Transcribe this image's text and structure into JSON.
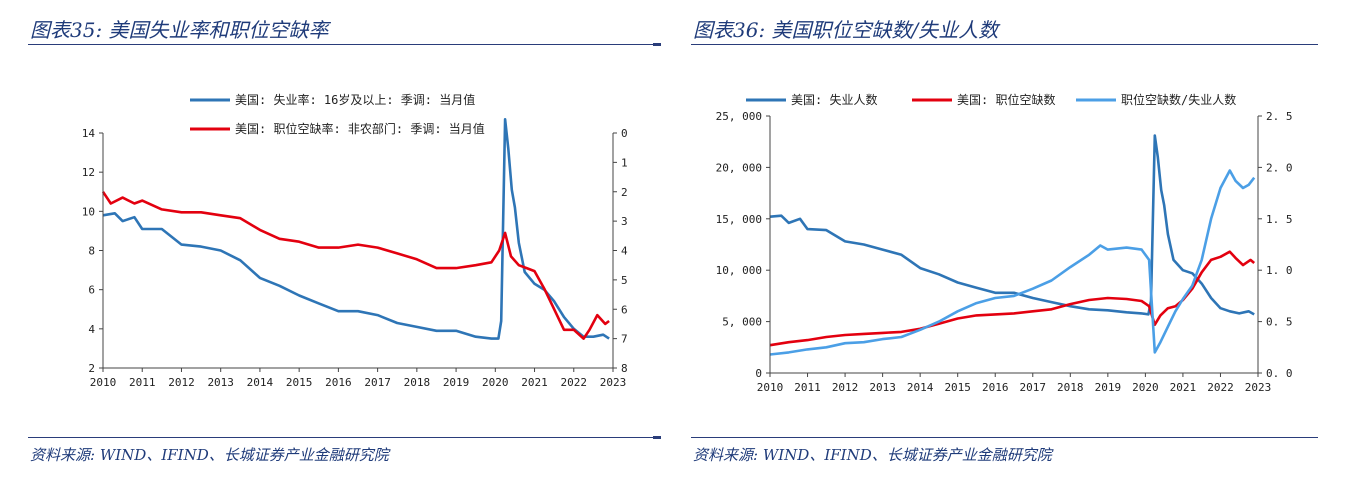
{
  "left": {
    "title": "图表35:  美国失业率和职位空缺率",
    "source": "资料来源:  WIND、IFIND、长城证券产业金融研究院"
  },
  "right": {
    "title": "图表36:  美国职位空缺数/失业人数",
    "source": "资料来源:  WIND、IFIND、长城证券产业金融研究院"
  },
  "colors": {
    "dark_blue": "#2e75b6",
    "red": "#e3000f",
    "light_blue": "#4b9fe6",
    "title_blue": "#1f3b7a"
  },
  "chart_data": [
    {
      "type": "line",
      "x_ticks": [
        "2010",
        "2011",
        "2012",
        "2013",
        "2014",
        "2015",
        "2016",
        "2017",
        "2018",
        "2019",
        "2020",
        "2021",
        "2022",
        "2023"
      ],
      "xlim": [
        2010,
        2023
      ],
      "y_left": {
        "ylim": [
          2,
          14
        ],
        "ticks": [
          "2",
          "4",
          "6",
          "8",
          "10",
          "12",
          "14"
        ],
        "inverted": false
      },
      "y_right": {
        "ylim": [
          0,
          8
        ],
        "ticks": [
          "0",
          "1",
          "2",
          "3",
          "4",
          "5",
          "6",
          "7",
          "8"
        ],
        "inverted": true
      },
      "legend_position": "top",
      "series": [
        {
          "name": "美国: 失业率: 16岁及以上: 季调: 当月值",
          "axis": "left",
          "color": "#2e75b6",
          "points": [
            [
              2010.0,
              9.8
            ],
            [
              2010.3,
              9.9
            ],
            [
              2010.5,
              9.5
            ],
            [
              2010.8,
              9.7
            ],
            [
              2011.0,
              9.1
            ],
            [
              2011.5,
              9.1
            ],
            [
              2012.0,
              8.3
            ],
            [
              2012.5,
              8.2
            ],
            [
              2013.0,
              8.0
            ],
            [
              2013.5,
              7.5
            ],
            [
              2014.0,
              6.6
            ],
            [
              2014.5,
              6.2
            ],
            [
              2015.0,
              5.7
            ],
            [
              2015.5,
              5.3
            ],
            [
              2016.0,
              4.9
            ],
            [
              2016.5,
              4.9
            ],
            [
              2017.0,
              4.7
            ],
            [
              2017.5,
              4.3
            ],
            [
              2018.0,
              4.1
            ],
            [
              2018.5,
              3.9
            ],
            [
              2019.0,
              3.9
            ],
            [
              2019.5,
              3.6
            ],
            [
              2019.9,
              3.5
            ],
            [
              2020.08,
              3.5
            ],
            [
              2020.15,
              4.4
            ],
            [
              2020.25,
              14.7
            ],
            [
              2020.33,
              13.2
            ],
            [
              2020.42,
              11.1
            ],
            [
              2020.5,
              10.2
            ],
            [
              2020.6,
              8.4
            ],
            [
              2020.75,
              6.9
            ],
            [
              2021.0,
              6.3
            ],
            [
              2021.25,
              6.0
            ],
            [
              2021.5,
              5.4
            ],
            [
              2021.75,
              4.6
            ],
            [
              2022.0,
              4.0
            ],
            [
              2022.25,
              3.6
            ],
            [
              2022.5,
              3.6
            ],
            [
              2022.75,
              3.7
            ],
            [
              2022.9,
              3.5
            ]
          ]
        },
        {
          "name": "美国: 职位空缺率: 非农部门: 季调: 当月值",
          "axis": "right",
          "color": "#e3000f",
          "points": [
            [
              2010.0,
              2.0
            ],
            [
              2010.2,
              2.4
            ],
            [
              2010.5,
              2.2
            ],
            [
              2010.8,
              2.4
            ],
            [
              2011.0,
              2.3
            ],
            [
              2011.5,
              2.6
            ],
            [
              2012.0,
              2.7
            ],
            [
              2012.5,
              2.7
            ],
            [
              2013.0,
              2.8
            ],
            [
              2013.5,
              2.9
            ],
            [
              2014.0,
              3.3
            ],
            [
              2014.5,
              3.6
            ],
            [
              2015.0,
              3.7
            ],
            [
              2015.5,
              3.9
            ],
            [
              2016.0,
              3.9
            ],
            [
              2016.5,
              3.8
            ],
            [
              2017.0,
              3.9
            ],
            [
              2017.5,
              4.1
            ],
            [
              2018.0,
              4.3
            ],
            [
              2018.5,
              4.6
            ],
            [
              2019.0,
              4.6
            ],
            [
              2019.5,
              4.5
            ],
            [
              2019.9,
              4.4
            ],
            [
              2020.1,
              4.0
            ],
            [
              2020.25,
              3.4
            ],
            [
              2020.4,
              4.2
            ],
            [
              2020.6,
              4.5
            ],
            [
              2020.8,
              4.6
            ],
            [
              2021.0,
              4.7
            ],
            [
              2021.25,
              5.3
            ],
            [
              2021.5,
              6.0
            ],
            [
              2021.75,
              6.7
            ],
            [
              2022.0,
              6.7
            ],
            [
              2022.25,
              7.0
            ],
            [
              2022.4,
              6.7
            ],
            [
              2022.6,
              6.2
            ],
            [
              2022.8,
              6.5
            ],
            [
              2022.9,
              6.4
            ]
          ]
        }
      ]
    },
    {
      "type": "line",
      "x_ticks": [
        "2010",
        "2011",
        "2012",
        "2013",
        "2014",
        "2015",
        "2016",
        "2017",
        "2018",
        "2019",
        "2020",
        "2021",
        "2022",
        "2023"
      ],
      "xlim": [
        2010,
        2023
      ],
      "y_left": {
        "ylim": [
          0,
          25000
        ],
        "ticks": [
          "0",
          "5, 000",
          "10, 000",
          "15, 000",
          "20, 000",
          "25, 000"
        ]
      },
      "y_right": {
        "ylim": [
          0,
          2.5
        ],
        "ticks": [
          "0. 0",
          "0. 5",
          "1. 0",
          "1. 5",
          "2. 0",
          "2. 5"
        ]
      },
      "legend_position": "top",
      "series": [
        {
          "name": "美国: 失业人数",
          "axis": "left",
          "color": "#2e75b6",
          "points": [
            [
              2010.0,
              15200
            ],
            [
              2010.3,
              15300
            ],
            [
              2010.5,
              14600
            ],
            [
              2010.8,
              15000
            ],
            [
              2011.0,
              14000
            ],
            [
              2011.5,
              13900
            ],
            [
              2012.0,
              12800
            ],
            [
              2012.5,
              12500
            ],
            [
              2013.0,
              12000
            ],
            [
              2013.5,
              11500
            ],
            [
              2014.0,
              10200
            ],
            [
              2014.5,
              9600
            ],
            [
              2015.0,
              8800
            ],
            [
              2015.5,
              8300
            ],
            [
              2016.0,
              7800
            ],
            [
              2016.5,
              7800
            ],
            [
              2017.0,
              7300
            ],
            [
              2017.5,
              6900
            ],
            [
              2018.0,
              6500
            ],
            [
              2018.5,
              6200
            ],
            [
              2019.0,
              6100
            ],
            [
              2019.5,
              5900
            ],
            [
              2019.9,
              5800
            ],
            [
              2020.08,
              5700
            ],
            [
              2020.15,
              7000
            ],
            [
              2020.25,
              23100
            ],
            [
              2020.33,
              21000
            ],
            [
              2020.42,
              17800
            ],
            [
              2020.5,
              16300
            ],
            [
              2020.6,
              13500
            ],
            [
              2020.75,
              11000
            ],
            [
              2021.0,
              10000
            ],
            [
              2021.25,
              9700
            ],
            [
              2021.5,
              8700
            ],
            [
              2021.75,
              7300
            ],
            [
              2022.0,
              6300
            ],
            [
              2022.25,
              6000
            ],
            [
              2022.5,
              5800
            ],
            [
              2022.75,
              6000
            ],
            [
              2022.9,
              5700
            ]
          ]
        },
        {
          "name": "美国: 职位空缺数",
          "axis": "left",
          "color": "#e3000f",
          "points": [
            [
              2010.0,
              2700
            ],
            [
              2010.5,
              3000
            ],
            [
              2011.0,
              3200
            ],
            [
              2011.5,
              3500
            ],
            [
              2012.0,
              3700
            ],
            [
              2012.5,
              3800
            ],
            [
              2013.0,
              3900
            ],
            [
              2013.5,
              4000
            ],
            [
              2014.0,
              4300
            ],
            [
              2014.5,
              4800
            ],
            [
              2015.0,
              5300
            ],
            [
              2015.5,
              5600
            ],
            [
              2016.0,
              5700
            ],
            [
              2016.5,
              5800
            ],
            [
              2017.0,
              6000
            ],
            [
              2017.5,
              6200
            ],
            [
              2018.0,
              6700
            ],
            [
              2018.5,
              7100
            ],
            [
              2019.0,
              7300
            ],
            [
              2019.5,
              7200
            ],
            [
              2019.9,
              7000
            ],
            [
              2020.1,
              6500
            ],
            [
              2020.25,
              4700
            ],
            [
              2020.4,
              5600
            ],
            [
              2020.6,
              6300
            ],
            [
              2020.8,
              6500
            ],
            [
              2021.0,
              7100
            ],
            [
              2021.25,
              8200
            ],
            [
              2021.5,
              9800
            ],
            [
              2021.75,
              11000
            ],
            [
              2022.0,
              11300
            ],
            [
              2022.25,
              11800
            ],
            [
              2022.4,
              11200
            ],
            [
              2022.6,
              10500
            ],
            [
              2022.8,
              11000
            ],
            [
              2022.9,
              10700
            ]
          ]
        },
        {
          "name": "职位空缺数/失业人数",
          "axis": "right",
          "color": "#4b9fe6",
          "points": [
            [
              2010.0,
              0.18
            ],
            [
              2010.5,
              0.2
            ],
            [
              2011.0,
              0.23
            ],
            [
              2011.5,
              0.25
            ],
            [
              2012.0,
              0.29
            ],
            [
              2012.5,
              0.3
            ],
            [
              2013.0,
              0.33
            ],
            [
              2013.5,
              0.35
            ],
            [
              2014.0,
              0.42
            ],
            [
              2014.5,
              0.5
            ],
            [
              2015.0,
              0.6
            ],
            [
              2015.5,
              0.68
            ],
            [
              2016.0,
              0.73
            ],
            [
              2016.5,
              0.75
            ],
            [
              2017.0,
              0.82
            ],
            [
              2017.5,
              0.9
            ],
            [
              2018.0,
              1.03
            ],
            [
              2018.5,
              1.15
            ],
            [
              2018.8,
              1.24
            ],
            [
              2019.0,
              1.2
            ],
            [
              2019.5,
              1.22
            ],
            [
              2019.9,
              1.2
            ],
            [
              2020.1,
              1.1
            ],
            [
              2020.25,
              0.2
            ],
            [
              2020.4,
              0.3
            ],
            [
              2020.6,
              0.45
            ],
            [
              2020.8,
              0.6
            ],
            [
              2021.0,
              0.72
            ],
            [
              2021.25,
              0.85
            ],
            [
              2021.5,
              1.1
            ],
            [
              2021.75,
              1.5
            ],
            [
              2022.0,
              1.8
            ],
            [
              2022.25,
              1.97
            ],
            [
              2022.4,
              1.87
            ],
            [
              2022.6,
              1.8
            ],
            [
              2022.75,
              1.83
            ],
            [
              2022.9,
              1.9
            ]
          ]
        }
      ]
    }
  ]
}
